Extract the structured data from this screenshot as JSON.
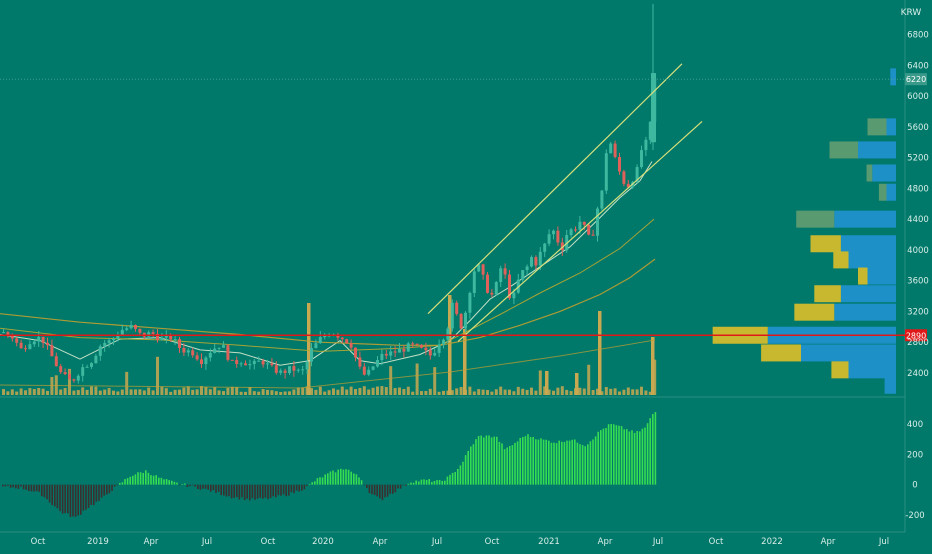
{
  "currency": "KRW",
  "colors": {
    "background": "#00786a",
    "price_up": "#3fb8a0",
    "price_down": "#e0605a",
    "channel": "#d8e07a",
    "ma_short": "#d8ecd0",
    "ma_mid": "#b8a830",
    "ma_long": "#c0a030",
    "support": "#e01818",
    "vp_buy": "#1e90c8",
    "vp_sell": "#c8b830",
    "vp_shaded": "#5a9a70",
    "hist_pos": "#36dd52",
    "hist_neg": "#3a3030",
    "volume": "#c8a850"
  },
  "chart_data": [
    {
      "type": "candlestick",
      "panel": "price",
      "ylim": [
        2100,
        7250
      ],
      "y_ticks": [
        2400,
        2800,
        3200,
        3600,
        4000,
        4400,
        4800,
        5200,
        5600,
        6000,
        6400,
        6800
      ],
      "y_tick_labels": [
        "2400",
        "2800",
        "3200",
        "3600",
        "4000",
        "4400",
        "4800",
        "5200",
        "5600",
        "6000",
        "6400",
        "6800"
      ],
      "x_labels": [
        "Oct",
        "2019",
        "Apr",
        "Jul",
        "Oct",
        "2020",
        "Apr",
        "Jul",
        "Oct",
        "2021",
        "Apr",
        "Jul",
        "Oct",
        "2022",
        "Apr",
        "Jul"
      ],
      "last_price": 6220,
      "last_price_label": "6220",
      "support_level": 2890,
      "support_label": "2890",
      "series": [
        {
          "kind": "price",
          "points": [
            [
              0,
              2930
            ],
            [
              10,
              2880
            ],
            [
              20,
              2700
            ],
            [
              30,
              2840
            ],
            [
              40,
              2860
            ],
            [
              50,
              2620
            ],
            [
              60,
              2380
            ],
            [
              70,
              2280
            ],
            [
              80,
              2460
            ],
            [
              90,
              2560
            ],
            [
              100,
              2780
            ],
            [
              110,
              2820
            ],
            [
              120,
              2960
            ],
            [
              130,
              3000
            ],
            [
              140,
              2880
            ],
            [
              150,
              2920
            ],
            [
              160,
              2840
            ],
            [
              170,
              2860
            ],
            [
              180,
              2700
            ],
            [
              190,
              2680
            ],
            [
              200,
              2560
            ],
            [
              210,
              2700
            ],
            [
              220,
              2780
            ],
            [
              230,
              2520
            ],
            [
              240,
              2560
            ],
            [
              250,
              2500
            ],
            [
              260,
              2560
            ],
            [
              270,
              2460
            ],
            [
              280,
              2400
            ],
            [
              290,
              2460
            ],
            [
              300,
              2400
            ],
            [
              305,
              2520
            ],
            [
              310,
              2700
            ],
            [
              320,
              2860
            ],
            [
              330,
              2940
            ],
            [
              340,
              2860
            ],
            [
              345,
              2820
            ],
            [
              350,
              2760
            ],
            [
              355,
              2560
            ],
            [
              360,
              2400
            ],
            [
              365,
              2360
            ],
            [
              370,
              2460
            ],
            [
              380,
              2620
            ],
            [
              390,
              2660
            ],
            [
              400,
              2700
            ],
            [
              410,
              2760
            ],
            [
              420,
              2700
            ],
            [
              430,
              2620
            ],
            [
              440,
              2860
            ],
            [
              445,
              2900
            ],
            [
              450,
              3300
            ],
            [
              460,
              3000
            ],
            [
              465,
              3240
            ],
            [
              470,
              3600
            ],
            [
              475,
              3840
            ],
            [
              480,
              3700
            ],
            [
              485,
              3500
            ],
            [
              490,
              3400
            ],
            [
              495,
              3550
            ],
            [
              500,
              3800
            ],
            [
              505,
              3600
            ],
            [
              510,
              3280
            ],
            [
              515,
              3540
            ],
            [
              520,
              3700
            ],
            [
              525,
              3760
            ],
            [
              530,
              3900
            ],
            [
              535,
              3820
            ],
            [
              540,
              4000
            ],
            [
              545,
              4100
            ],
            [
              550,
              4300
            ],
            [
              555,
              4160
            ],
            [
              560,
              4000
            ],
            [
              565,
              4200
            ],
            [
              570,
              4260
            ],
            [
              575,
              4300
            ],
            [
              580,
              4400
            ],
            [
              585,
              4200
            ],
            [
              590,
              4100
            ],
            [
              595,
              4500
            ],
            [
              600,
              4700
            ],
            [
              605,
              5300
            ],
            [
              610,
              5400
            ],
            [
              615,
              5100
            ],
            [
              620,
              4960
            ],
            [
              625,
              4800
            ],
            [
              630,
              4900
            ],
            [
              635,
              5000
            ],
            [
              640,
              5300
            ],
            [
              645,
              5400
            ],
            [
              650,
              5700
            ],
            [
              652,
              6220
            ],
            [
              656,
              6220
            ]
          ]
        },
        {
          "kind": "ma_short",
          "points": [
            [
              0,
              2900
            ],
            [
              40,
              2820
            ],
            [
              80,
              2580
            ],
            [
              120,
              2840
            ],
            [
              160,
              2860
            ],
            [
              200,
              2700
            ],
            [
              240,
              2660
            ],
            [
              280,
              2500
            ],
            [
              310,
              2560
            ],
            [
              340,
              2820
            ],
            [
              360,
              2560
            ],
            [
              380,
              2520
            ],
            [
              420,
              2640
            ],
            [
              450,
              2820
            ],
            [
              470,
              3080
            ],
            [
              490,
              3360
            ],
            [
              510,
              3520
            ],
            [
              540,
              3780
            ],
            [
              570,
              4040
            ],
            [
              600,
              4420
            ],
            [
              620,
              4680
            ],
            [
              640,
              4900
            ],
            [
              652,
              5150
            ]
          ]
        },
        {
          "kind": "ma_mid",
          "points": [
            [
              0,
              2980
            ],
            [
              80,
              2860
            ],
            [
              160,
              2830
            ],
            [
              240,
              2760
            ],
            [
              320,
              2680
            ],
            [
              400,
              2720
            ],
            [
              440,
              2760
            ],
            [
              470,
              2960
            ],
            [
              500,
              3160
            ],
            [
              540,
              3440
            ],
            [
              580,
              3700
            ],
            [
              620,
              4020
            ],
            [
              654,
              4400
            ]
          ]
        },
        {
          "kind": "ma_long",
          "points": [
            [
              0,
              3170
            ],
            [
              80,
              3060
            ],
            [
              160,
              2980
            ],
            [
              240,
              2900
            ],
            [
              320,
              2800
            ],
            [
              400,
              2760
            ],
            [
              440,
              2760
            ],
            [
              480,
              2860
            ],
            [
              520,
              3020
            ],
            [
              560,
              3200
            ],
            [
              600,
              3420
            ],
            [
              630,
              3640
            ],
            [
              655,
              3880
            ]
          ]
        }
      ],
      "channel_lines": [
        [
          [
            428,
            3170
          ],
          [
            682,
            6420
          ]
        ],
        [
          [
            458,
            2810
          ],
          [
            702,
            5670
          ]
        ]
      ],
      "volume_profile": [
        {
          "price": 6250,
          "buy": 6,
          "sell": 0
        },
        {
          "price": 5600,
          "buy": 10,
          "sell": 20
        },
        {
          "price": 5300,
          "buy": 40,
          "sell": 30
        },
        {
          "price": 5000,
          "buy": 25,
          "sell": 6
        },
        {
          "price": 4750,
          "buy": 10,
          "sell": 8
        },
        {
          "price": 4400,
          "buy": 65,
          "sell": 40
        },
        {
          "price": 4080,
          "buy": 58,
          "sell": 32
        },
        {
          "price": 3870,
          "buy": 50,
          "sell": 16
        },
        {
          "price": 3660,
          "buy": 30,
          "sell": 10
        },
        {
          "price": 3430,
          "buy": 58,
          "sell": 28
        },
        {
          "price": 3190,
          "buy": 65,
          "sell": 42
        },
        {
          "price": 2890,
          "buy": 135,
          "sell": 58
        },
        {
          "price": 2660,
          "buy": 100,
          "sell": 42
        },
        {
          "price": 2440,
          "buy": 50,
          "sell": 18
        },
        {
          "price": 2240,
          "buy": 12,
          "sell": 0
        }
      ]
    },
    {
      "type": "histogram",
      "panel": "oscillator",
      "ylim": [
        -300,
        560
      ],
      "y_ticks": [
        -200,
        0,
        200,
        400
      ],
      "y_tick_labels": [
        "-200",
        "0",
        "200",
        "400"
      ],
      "values_description": "MACD-style histogram per week",
      "points": [
        [
          0,
          -15
        ],
        [
          20,
          -20
        ],
        [
          40,
          -60
        ],
        [
          60,
          -180
        ],
        [
          75,
          -220
        ],
        [
          85,
          -160
        ],
        [
          100,
          -100
        ],
        [
          110,
          -40
        ],
        [
          120,
          10
        ],
        [
          130,
          60
        ],
        [
          145,
          90
        ],
        [
          160,
          40
        ],
        [
          175,
          10
        ],
        [
          190,
          -10
        ],
        [
          210,
          -40
        ],
        [
          230,
          -80
        ],
        [
          250,
          -100
        ],
        [
          270,
          -90
        ],
        [
          290,
          -60
        ],
        [
          305,
          -20
        ],
        [
          315,
          30
        ],
        [
          330,
          80
        ],
        [
          345,
          110
        ],
        [
          360,
          40
        ],
        [
          370,
          -60
        ],
        [
          380,
          -100
        ],
        [
          395,
          -40
        ],
        [
          410,
          20
        ],
        [
          425,
          30
        ],
        [
          440,
          20
        ],
        [
          450,
          60
        ],
        [
          460,
          130
        ],
        [
          470,
          250
        ],
        [
          478,
          320
        ],
        [
          495,
          320
        ],
        [
          505,
          230
        ],
        [
          515,
          280
        ],
        [
          525,
          330
        ],
        [
          540,
          300
        ],
        [
          555,
          280
        ],
        [
          570,
          300
        ],
        [
          585,
          260
        ],
        [
          600,
          360
        ],
        [
          610,
          400
        ],
        [
          620,
          380
        ],
        [
          635,
          340
        ],
        [
          645,
          380
        ],
        [
          653,
          480
        ]
      ]
    }
  ]
}
